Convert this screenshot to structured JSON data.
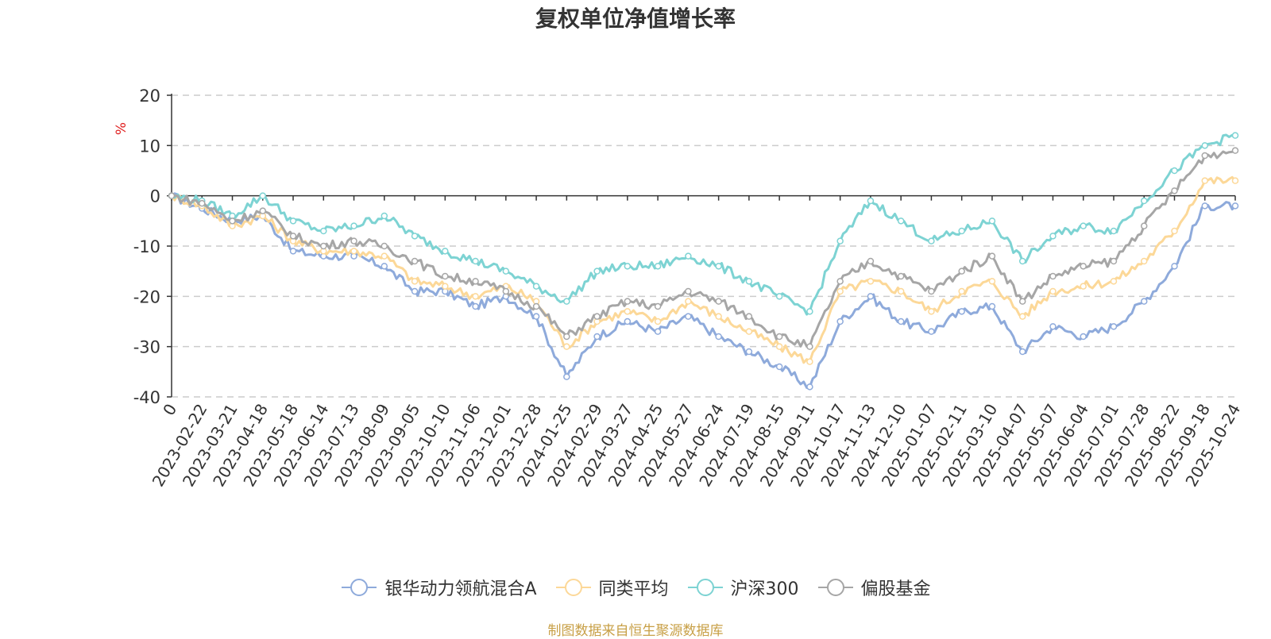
{
  "chart_data": {
    "type": "line",
    "title": "复权单位净值增长率",
    "ylabel": "%",
    "xlabel": "",
    "ylim": [
      -40,
      20
    ],
    "yticks": [
      20,
      10,
      0,
      -10,
      -20,
      -30,
      -40
    ],
    "grid": true,
    "legend_position": "bottom",
    "x": [
      "0",
      "2023-02-22",
      "2023-03-21",
      "2023-04-18",
      "2023-05-18",
      "2023-06-14",
      "2023-07-13",
      "2023-08-09",
      "2023-09-05",
      "2023-10-10",
      "2023-11-06",
      "2023-12-01",
      "2023-12-28",
      "2024-01-25",
      "2024-02-29",
      "2024-03-27",
      "2024-04-25",
      "2024-05-27",
      "2024-06-24",
      "2024-07-19",
      "2024-08-15",
      "2024-09-11",
      "2024-10-17",
      "2024-11-13",
      "2024-12-10",
      "2025-01-07",
      "2025-02-11",
      "2025-03-10",
      "2025-04-07",
      "2025-05-07",
      "2025-06-04",
      "2025-07-01",
      "2025-07-28",
      "2025-08-22",
      "2025-09-18",
      "2025-10-24"
    ],
    "series": [
      {
        "name": "银华动力领航混合A",
        "color": "#8eaadb",
        "values": [
          0,
          -2.5,
          -5,
          -4,
          -11,
          -12,
          -12,
          -14,
          -19,
          -19,
          -22,
          -20,
          -24,
          -36,
          -28,
          -25,
          -27,
          -24,
          -28,
          -31,
          -34,
          -38,
          -25,
          -20,
          -25,
          -27,
          -23,
          -22,
          -31,
          -26,
          -28,
          -26,
          -21,
          -14,
          -2,
          -2
        ]
      },
      {
        "name": "同类平均",
        "color": "#fcd898",
        "values": [
          0,
          -2,
          -6,
          -4,
          -9,
          -11,
          -11,
          -12,
          -17,
          -18,
          -20,
          -18,
          -21,
          -30,
          -25,
          -23,
          -25,
          -21,
          -24,
          -27,
          -30,
          -33,
          -19,
          -17,
          -19,
          -23,
          -19,
          -17,
          -24,
          -19,
          -18,
          -17,
          -13,
          -7,
          3,
          3
        ]
      },
      {
        "name": "沪深300",
        "color": "#7dd3d3",
        "values": [
          0,
          -1,
          -4,
          0,
          -5,
          -7,
          -6,
          -4,
          -8,
          -11,
          -13,
          -15,
          -18,
          -21,
          -15,
          -14,
          -14,
          -12,
          -14,
          -17,
          -20,
          -23,
          -9,
          -1,
          -5,
          -9,
          -7,
          -5,
          -13,
          -8,
          -6,
          -7,
          -1,
          5,
          10,
          12
        ]
      },
      {
        "name": "偏股基金",
        "color": "#a6a6a6",
        "values": [
          0,
          -1.5,
          -5,
          -3,
          -8,
          -10,
          -9,
          -10,
          -13,
          -16,
          -17,
          -19,
          -22,
          -28,
          -24,
          -21,
          -22,
          -19,
          -21,
          -24,
          -28,
          -30,
          -17,
          -13,
          -16,
          -19,
          -15,
          -12,
          -21,
          -16,
          -14,
          -13,
          -6,
          1,
          8,
          9
        ]
      }
    ]
  },
  "source_text": "制图数据来自恒生聚源数据库"
}
